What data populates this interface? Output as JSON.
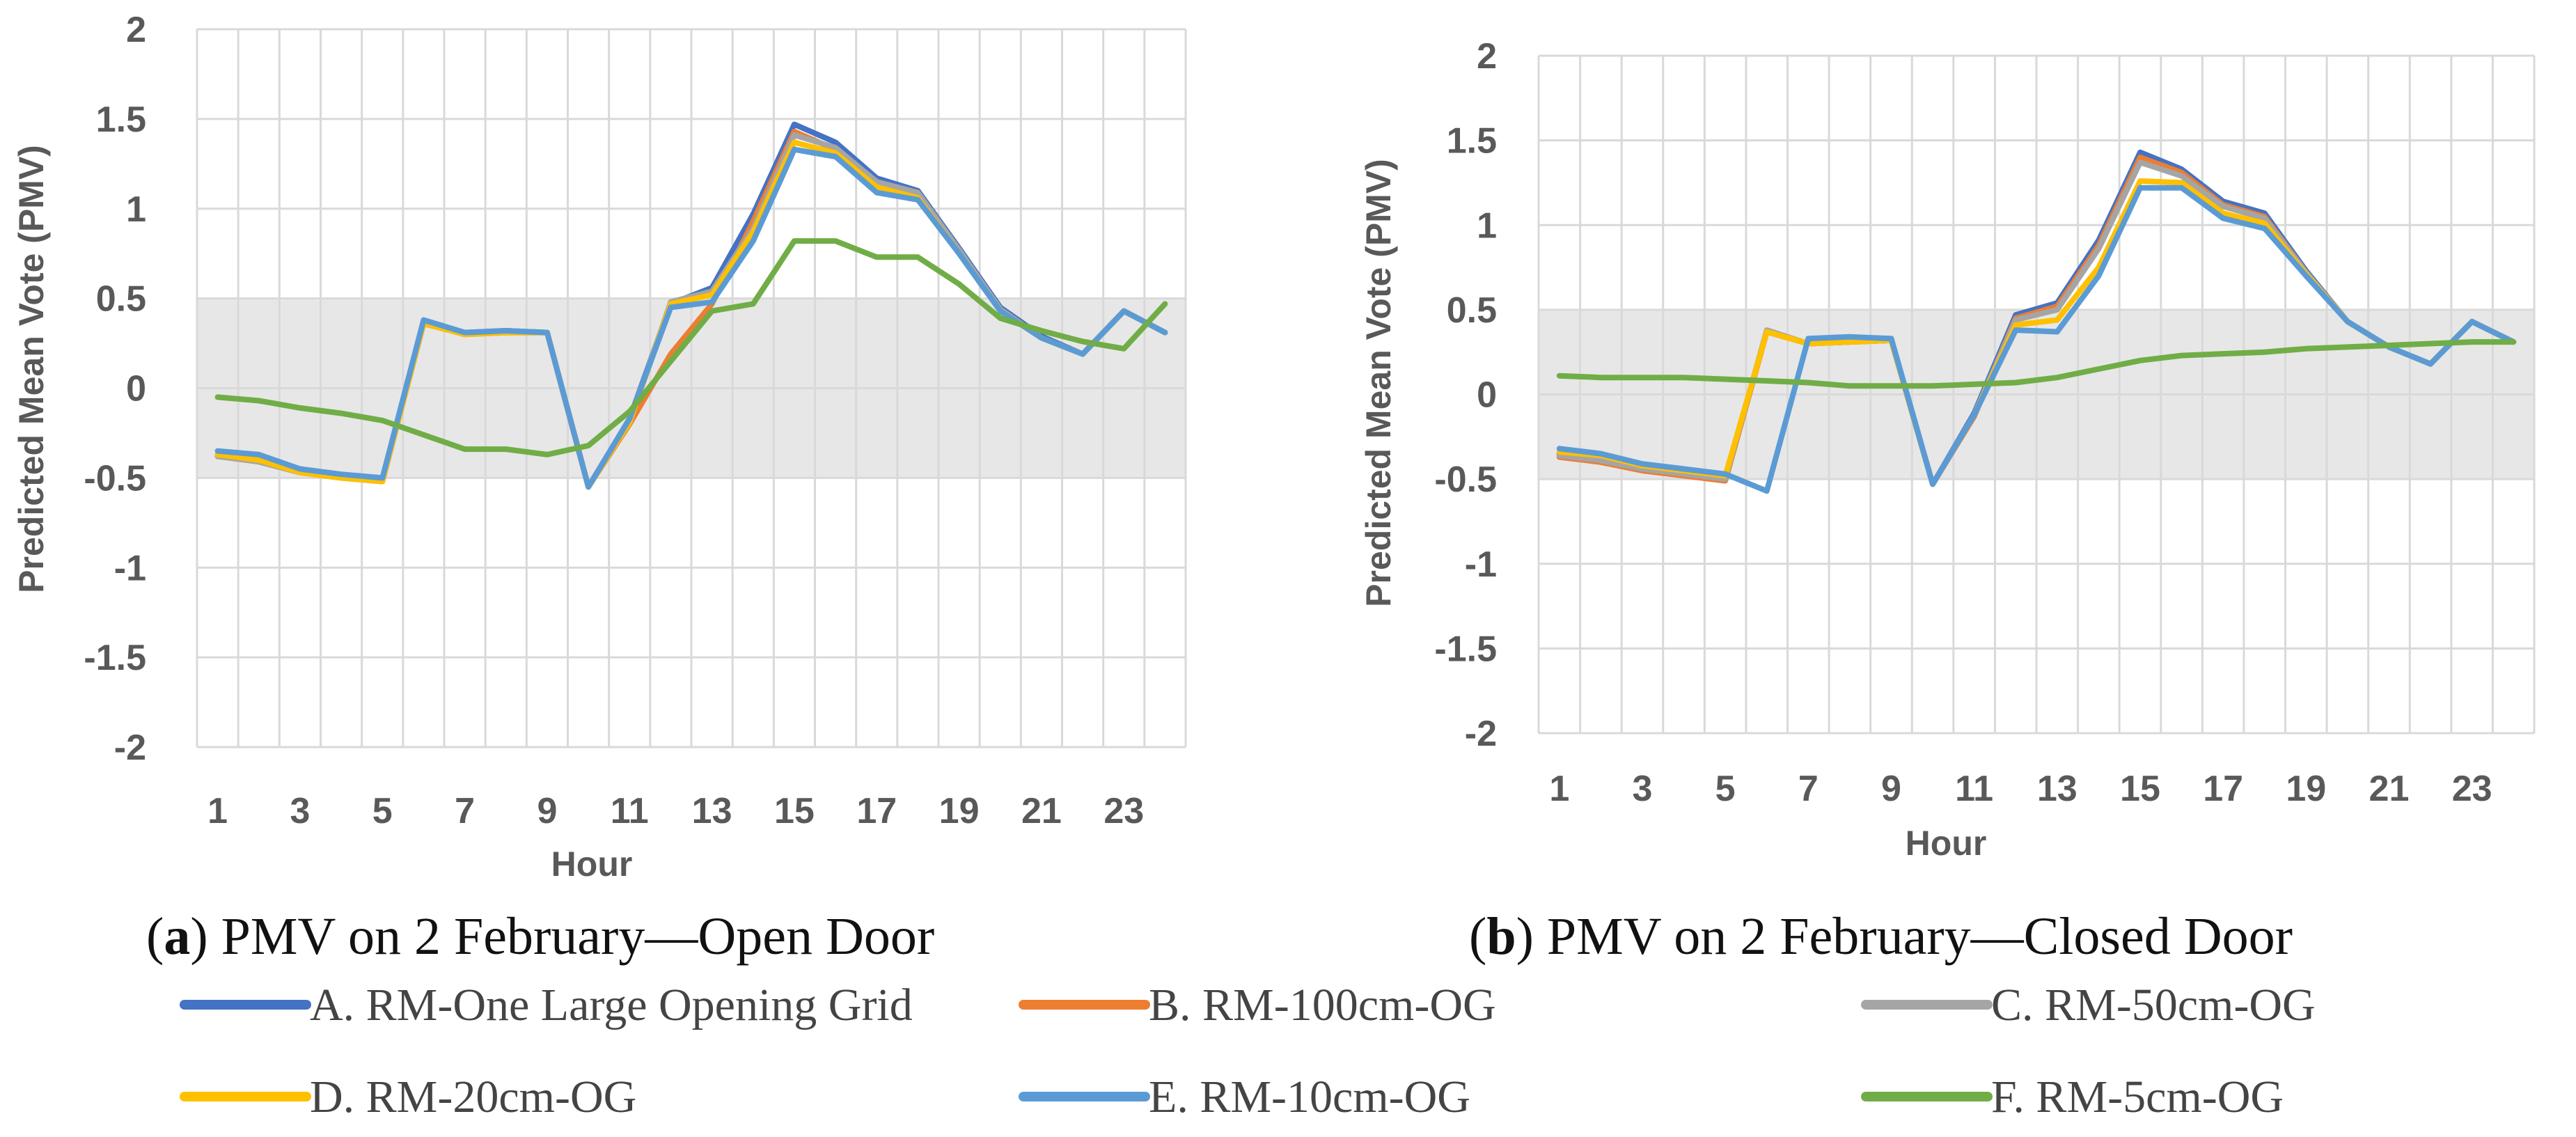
{
  "chart_data": [
    {
      "type": "line",
      "caption_letter": "a",
      "caption_text": "PMV on 2 February—Open Door",
      "xlabel": "Hour",
      "ylabel": "Predicted Mean Vote (PMV)",
      "xlim": [
        1,
        24
      ],
      "ylim": [
        -2,
        2
      ],
      "x_ticks": [
        1,
        3,
        5,
        7,
        9,
        11,
        13,
        15,
        17,
        19,
        21,
        23
      ],
      "y_ticks": [
        -2,
        -1.5,
        -1,
        -0.5,
        0,
        0.5,
        1,
        1.5,
        2
      ],
      "y_tick_labels": [
        "-2",
        "-1.5",
        "-1",
        "-0.5",
        "0",
        "0.5",
        "1",
        "1.5",
        "2"
      ],
      "comfort_band": [
        -0.5,
        0.5
      ],
      "grid": true,
      "x": [
        1,
        2,
        3,
        4,
        5,
        6,
        7,
        8,
        9,
        10,
        11,
        12,
        13,
        14,
        15,
        16,
        17,
        18,
        19,
        20,
        21,
        22,
        23,
        24
      ],
      "series": [
        {
          "name": "A. RM-One Large Opening Grid",
          "color": "#4472C4",
          "values": [
            -0.37,
            -0.39,
            -0.46,
            -0.49,
            -0.51,
            0.37,
            0.31,
            0.32,
            0.31,
            -0.55,
            -0.17,
            0.47,
            0.56,
            0.97,
            1.47,
            1.37,
            1.17,
            1.1,
            0.78,
            0.45,
            0.29,
            0.19,
            0.43,
            0.31
          ]
        },
        {
          "name": "B. RM-100cm-OG",
          "color": "#ED7D31",
          "values": [
            -0.38,
            -0.41,
            -0.47,
            -0.5,
            -0.52,
            0.36,
            0.3,
            0.31,
            0.31,
            -0.55,
            -0.2,
            0.19,
            0.47,
            0.93,
            1.43,
            1.33,
            1.14,
            1.08,
            0.76,
            0.44,
            0.28,
            0.19,
            0.43,
            0.31
          ]
        },
        {
          "name": "C. RM-50cm-OG",
          "color": "#A5A5A5",
          "values": [
            -0.38,
            -0.41,
            -0.47,
            -0.5,
            -0.52,
            0.36,
            0.3,
            0.31,
            0.31,
            -0.55,
            -0.19,
            0.48,
            0.54,
            0.89,
            1.41,
            1.34,
            1.15,
            1.09,
            0.77,
            0.44,
            0.28,
            0.19,
            0.43,
            0.31
          ]
        },
        {
          "name": "D. RM-20cm-OG",
          "color": "#FFC000",
          "values": [
            -0.37,
            -0.4,
            -0.47,
            -0.5,
            -0.52,
            0.36,
            0.3,
            0.31,
            0.31,
            -0.55,
            -0.19,
            0.47,
            0.52,
            0.87,
            1.37,
            1.31,
            1.12,
            1.06,
            0.75,
            0.43,
            0.28,
            0.19,
            0.43,
            0.31
          ]
        },
        {
          "name": "E. RM-10cm-OG",
          "color": "#5B9BD5",
          "values": [
            -0.35,
            -0.37,
            -0.45,
            -0.48,
            -0.5,
            0.38,
            0.31,
            0.32,
            0.31,
            -0.55,
            -0.17,
            0.45,
            0.48,
            0.82,
            1.33,
            1.29,
            1.09,
            1.05,
            0.75,
            0.43,
            0.28,
            0.19,
            0.43,
            0.31
          ]
        },
        {
          "name": "F. RM-5cm-OG",
          "color": "#70AD47",
          "values": [
            -0.05,
            -0.07,
            -0.11,
            -0.14,
            -0.18,
            -0.26,
            -0.34,
            -0.34,
            -0.37,
            -0.32,
            -0.13,
            0.15,
            0.43,
            0.47,
            0.82,
            0.82,
            0.73,
            0.73,
            0.58,
            0.39,
            0.32,
            0.26,
            0.22,
            0.47
          ]
        }
      ]
    },
    {
      "type": "line",
      "caption_letter": "b",
      "caption_text": "PMV on 2 February—Closed Door",
      "xlabel": "Hour",
      "ylabel": "Predicted Mean Vote (PMV)",
      "xlim": [
        1,
        24
      ],
      "ylim": [
        -2,
        2
      ],
      "x_ticks": [
        1,
        3,
        5,
        7,
        9,
        11,
        13,
        15,
        17,
        19,
        21,
        23
      ],
      "y_ticks": [
        -2,
        -1.5,
        -1,
        -0.5,
        0,
        0.5,
        1,
        1.5,
        2
      ],
      "y_tick_labels": [
        "-2",
        "-1.5",
        "-1",
        "-0.5",
        "0",
        "0.5",
        "1",
        "1.5",
        "2"
      ],
      "comfort_band": [
        -0.5,
        0.5
      ],
      "grid": true,
      "x": [
        1,
        2,
        3,
        4,
        5,
        6,
        7,
        8,
        9,
        10,
        11,
        12,
        13,
        14,
        15,
        16,
        17,
        18,
        19,
        20,
        21,
        22,
        23,
        24
      ],
      "series": [
        {
          "name": "A. RM-One Large Opening Grid",
          "color": "#4472C4",
          "values": [
            -0.35,
            -0.38,
            -0.43,
            -0.46,
            -0.49,
            0.37,
            0.3,
            0.31,
            0.32,
            -0.53,
            -0.11,
            0.47,
            0.54,
            0.91,
            1.43,
            1.33,
            1.14,
            1.07,
            0.73,
            0.43,
            0.28,
            0.18,
            0.43,
            0.31
          ]
        },
        {
          "name": "B. RM-100cm-OG",
          "color": "#ED7D31",
          "values": [
            -0.37,
            -0.4,
            -0.45,
            -0.48,
            -0.51,
            0.37,
            0.3,
            0.31,
            0.32,
            -0.53,
            -0.13,
            0.45,
            0.52,
            0.88,
            1.4,
            1.31,
            1.12,
            1.05,
            0.72,
            0.43,
            0.28,
            0.18,
            0.43,
            0.31
          ]
        },
        {
          "name": "C. RM-50cm-OG",
          "color": "#A5A5A5",
          "values": [
            -0.36,
            -0.39,
            -0.44,
            -0.47,
            -0.5,
            0.38,
            0.3,
            0.31,
            0.32,
            -0.53,
            -0.12,
            0.44,
            0.5,
            0.86,
            1.37,
            1.29,
            1.11,
            1.04,
            0.72,
            0.43,
            0.28,
            0.18,
            0.43,
            0.31
          ]
        },
        {
          "name": "D. RM-20cm-OG",
          "color": "#FFC000",
          "values": [
            -0.34,
            -0.36,
            -0.42,
            -0.45,
            -0.48,
            0.37,
            0.3,
            0.31,
            0.32,
            -0.53,
            -0.12,
            0.41,
            0.44,
            0.75,
            1.26,
            1.25,
            1.07,
            1.01,
            0.71,
            0.43,
            0.28,
            0.18,
            0.43,
            0.31
          ]
        },
        {
          "name": "E. RM-10cm-OG",
          "color": "#5B9BD5",
          "values": [
            -0.32,
            -0.35,
            -0.41,
            -0.44,
            -0.47,
            -0.57,
            0.33,
            0.34,
            0.33,
            -0.53,
            -0.12,
            0.38,
            0.37,
            0.7,
            1.22,
            1.22,
            1.04,
            0.98,
            0.7,
            0.43,
            0.28,
            0.18,
            0.43,
            0.31
          ]
        },
        {
          "name": "F. RM-5cm-OG",
          "color": "#70AD47",
          "values": [
            0.11,
            0.1,
            0.1,
            0.1,
            0.09,
            0.08,
            0.07,
            0.05,
            0.05,
            0.05,
            0.06,
            0.07,
            0.1,
            0.15,
            0.2,
            0.23,
            0.24,
            0.25,
            0.27,
            0.28,
            0.29,
            0.3,
            0.31,
            0.31
          ]
        }
      ]
    }
  ],
  "legend": [
    {
      "label": "A. RM-One Large Opening Grid",
      "color": "#4472C4"
    },
    {
      "label": "B. RM-100cm-OG",
      "color": "#ED7D31"
    },
    {
      "label": "C. RM-50cm-OG",
      "color": "#A5A5A5"
    },
    {
      "label": "D. RM-20cm-OG",
      "color": "#FFC000"
    },
    {
      "label": "E. RM-10cm-OG",
      "color": "#5B9BD5"
    },
    {
      "label": "F. RM-5cm-OG",
      "color": "#70AD47"
    }
  ],
  "colors": {
    "grid": "#D9D9D9",
    "band": "#E7E7E7",
    "tick": "#595959"
  }
}
